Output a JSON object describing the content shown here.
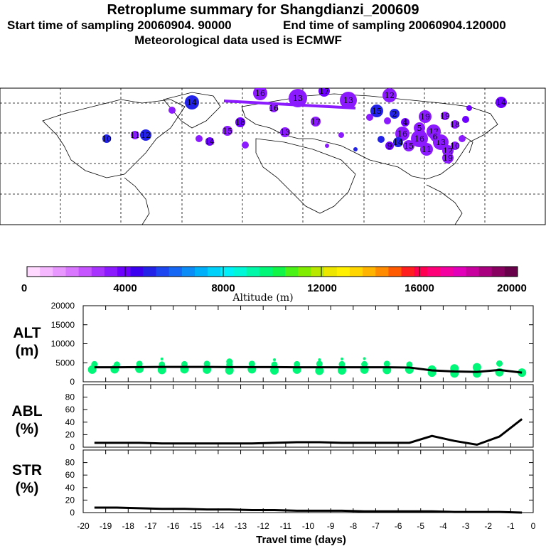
{
  "header": {
    "title": "Retroplume summary for Shangdianzi_200609",
    "start_time": "Start time of sampling 20060904. 90000",
    "end_time": "End time of sampling 20060904.120000",
    "met_data": "Meteorological data used is ECMWF"
  },
  "colorbar": {
    "title": "Altitude (m)",
    "tick_labels": [
      "0",
      "4000",
      "8000",
      "12000",
      "16000",
      "20000"
    ],
    "colors": [
      "#ffd9ff",
      "#f5b8ff",
      "#e897ff",
      "#d977ff",
      "#c655ff",
      "#a833ff",
      "#8c1aff",
      "#6e00ff",
      "#3a00ef",
      "#2222e8",
      "#1e46f0",
      "#1668f4",
      "#0b8cf7",
      "#00aff9",
      "#00d1fb",
      "#00f0fa",
      "#00f8d8",
      "#00f8a8",
      "#00f778",
      "#10f548",
      "#4af218",
      "#80ec00",
      "#b8e800",
      "#ece600",
      "#fff000",
      "#ffd600",
      "#ffb400",
      "#ff8c00",
      "#ff5a00",
      "#ff1e1e",
      "#ff0050",
      "#ff0078",
      "#f500a0",
      "#e200b8",
      "#c8009e",
      "#a8007e",
      "#880060",
      "#68004a"
    ]
  },
  "map": {
    "markers": [
      "13",
      "16",
      "17",
      "14",
      "13",
      "12",
      "15",
      "14",
      "19",
      "15",
      "19",
      "16",
      "18",
      "17",
      "15",
      "12",
      "16",
      "14",
      "13",
      "12",
      "11",
      "10",
      "19",
      "18",
      "17",
      "16",
      "15",
      "14",
      "13",
      "12",
      "11",
      "10",
      "9",
      "8",
      "7",
      "6",
      "5",
      "4",
      "3",
      "2",
      "1",
      "19",
      "20",
      "19",
      "18",
      "17",
      "14"
    ],
    "marker_color_default": "#8c1aff"
  },
  "chart_data": [
    {
      "type": "line",
      "name": "ALT",
      "ylabel": "ALT (m)",
      "ylim": [
        0,
        20000
      ],
      "yticks": [
        "20000",
        "15000",
        "10000",
        "5000",
        "0"
      ],
      "x": [
        -19.5,
        -18.5,
        -17.5,
        -16.5,
        -15.5,
        -14.5,
        -13.5,
        -12.5,
        -11.5,
        -10.5,
        -9.5,
        -8.5,
        -7.5,
        -6.5,
        -5.5,
        -4.5,
        -3.5,
        -2.5,
        -1.5,
        -0.5
      ],
      "values": [
        3800,
        3800,
        3850,
        3900,
        3900,
        3900,
        3850,
        3850,
        3850,
        3800,
        3800,
        3800,
        3800,
        3800,
        3750,
        3000,
        2700,
        2600,
        3100,
        2400
      ],
      "scatter_color": "#00f778",
      "scatter": [
        {
          "x": -19.6,
          "y": 3200
        },
        {
          "x": -19.5,
          "y": 4600
        },
        {
          "x": -18.6,
          "y": 3300
        },
        {
          "x": -18.5,
          "y": 4500
        },
        {
          "x": -17.5,
          "y": 3400
        },
        {
          "x": -17.5,
          "y": 4700
        },
        {
          "x": -16.5,
          "y": 3100
        },
        {
          "x": -16.5,
          "y": 4500
        },
        {
          "x": -16.5,
          "y": 6000
        },
        {
          "x": -15.5,
          "y": 3300
        },
        {
          "x": -15.5,
          "y": 4600
        },
        {
          "x": -14.5,
          "y": 3200
        },
        {
          "x": -14.5,
          "y": 4700
        },
        {
          "x": -13.5,
          "y": 3000
        },
        {
          "x": -13.5,
          "y": 4500
        },
        {
          "x": -13.5,
          "y": 5300
        },
        {
          "x": -12.5,
          "y": 3300
        },
        {
          "x": -12.5,
          "y": 4700
        },
        {
          "x": -11.5,
          "y": 3000
        },
        {
          "x": -11.5,
          "y": 4500
        },
        {
          "x": -11.5,
          "y": 5800
        },
        {
          "x": -10.5,
          "y": 3200
        },
        {
          "x": -10.5,
          "y": 4600
        },
        {
          "x": -9.5,
          "y": 2900
        },
        {
          "x": -9.5,
          "y": 4700
        },
        {
          "x": -9.5,
          "y": 5800
        },
        {
          "x": -8.5,
          "y": 3000
        },
        {
          "x": -8.5,
          "y": 4600
        },
        {
          "x": -8.5,
          "y": 6000
        },
        {
          "x": -7.5,
          "y": 3200
        },
        {
          "x": -7.5,
          "y": 4600
        },
        {
          "x": -7.5,
          "y": 6100
        },
        {
          "x": -6.5,
          "y": 3100
        },
        {
          "x": -6.5,
          "y": 4700
        },
        {
          "x": -5.5,
          "y": 3200
        },
        {
          "x": -5.5,
          "y": 4500
        },
        {
          "x": -4.5,
          "y": 2400
        },
        {
          "x": -4.5,
          "y": 3200
        },
        {
          "x": -3.5,
          "y": 2200
        },
        {
          "x": -3.5,
          "y": 3500
        },
        {
          "x": -2.5,
          "y": 2200
        },
        {
          "x": -2.5,
          "y": 3800
        },
        {
          "x": -1.5,
          "y": 2500
        },
        {
          "x": -1.5,
          "y": 4800
        },
        {
          "x": -0.5,
          "y": 2400
        }
      ]
    },
    {
      "type": "line",
      "name": "ABL",
      "ylabel": "ABL (%)",
      "ylim": [
        0,
        100
      ],
      "yticks": [
        "80",
        "60",
        "40",
        "20",
        "0"
      ],
      "x": [
        -19.5,
        -18.5,
        -17.5,
        -16.5,
        -15.5,
        -14.5,
        -13.5,
        -12.5,
        -11.5,
        -10.5,
        -9.5,
        -8.5,
        -7.5,
        -6.5,
        -5.5,
        -4.5,
        -3.5,
        -2.5,
        -1.5,
        -0.5
      ],
      "values": [
        7,
        7,
        7,
        6,
        6,
        6,
        6,
        6,
        7,
        8,
        8,
        7,
        7,
        7,
        7,
        18,
        10,
        4,
        17,
        45
      ]
    },
    {
      "type": "line",
      "name": "STR",
      "ylabel": "STR (%)",
      "ylim": [
        0,
        100
      ],
      "yticks": [
        "80",
        "60",
        "40",
        "20",
        "0"
      ],
      "x": [
        -19.5,
        -18.5,
        -17.5,
        -16.5,
        -15.5,
        -14.5,
        -13.5,
        -12.5,
        -11.5,
        -10.5,
        -9.5,
        -8.5,
        -7.5,
        -6.5,
        -5.5,
        -4.5,
        -3.5,
        -2.5,
        -1.5,
        -0.5
      ],
      "values": [
        8,
        8,
        7,
        6,
        6,
        5,
        5,
        4,
        4,
        3,
        3,
        3,
        2,
        2,
        2,
        2,
        1,
        1,
        1,
        0
      ],
      "xlabel": "Travel time (days)",
      "xticks": [
        "-20",
        "-19",
        "-18",
        "-17",
        "-16",
        "-15",
        "-14",
        "-13",
        "-12",
        "-11",
        "-10",
        "-9",
        "-8",
        "-7",
        "-6",
        "-5",
        "-4",
        "-3",
        "-2",
        "-1",
        "0"
      ]
    }
  ]
}
